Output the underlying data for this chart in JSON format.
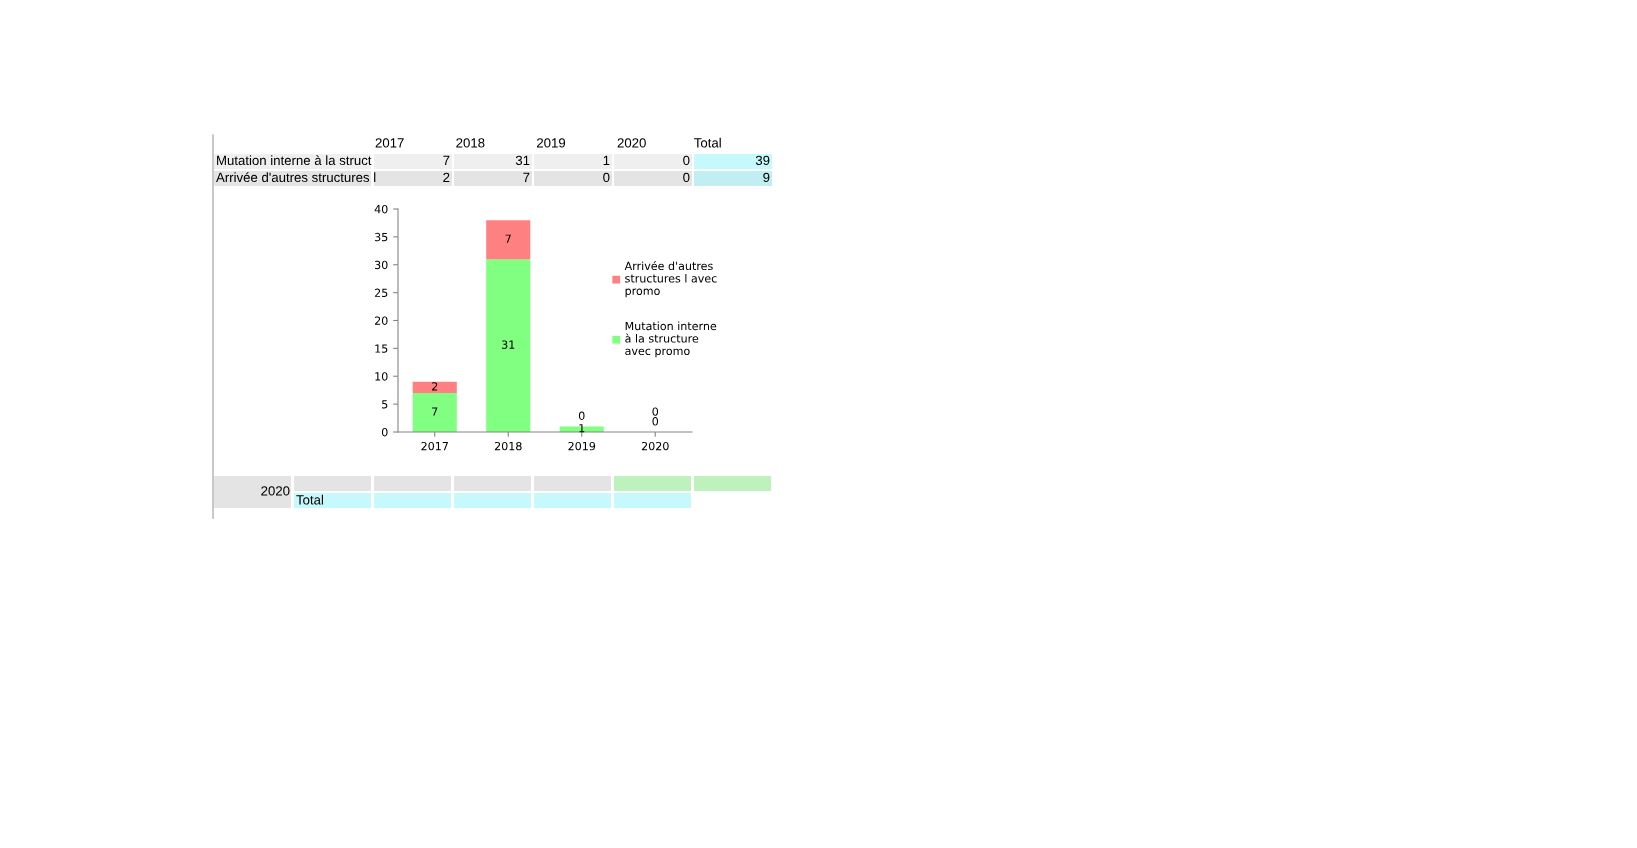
{
  "chart_data": [
    {
      "type": "other",
      "annotations": [
        "2017",
        "2018",
        "2019",
        "2020",
        "Total",
        "Mutation interne à la struct",
        "7",
        "31",
        "1",
        "0",
        "39",
        "Arrivée d'autres structures l",
        "2",
        "7",
        "0",
        "0",
        "9",
        "2020",
        "Total"
      ]
    },
    {
      "type": "bar",
      "stacked": true,
      "categories": [
        "2017",
        "2018",
        "2019",
        "2020"
      ],
      "series": [
        {
          "name": "Mutation interne à la structure avec promo",
          "color": "#80ff80",
          "values": [
            7,
            31,
            1,
            0
          ]
        },
        {
          "name": "Arrivée d'autres structures l avec promo",
          "color": "#ff8080",
          "values": [
            2,
            7,
            0,
            0
          ]
        }
      ],
      "ylim": [
        0,
        40
      ],
      "yticks": [
        0,
        5,
        10,
        15,
        20,
        25,
        30,
        35,
        40
      ],
      "grid": false,
      "legend": "right",
      "data_labels": true
    }
  ]
}
